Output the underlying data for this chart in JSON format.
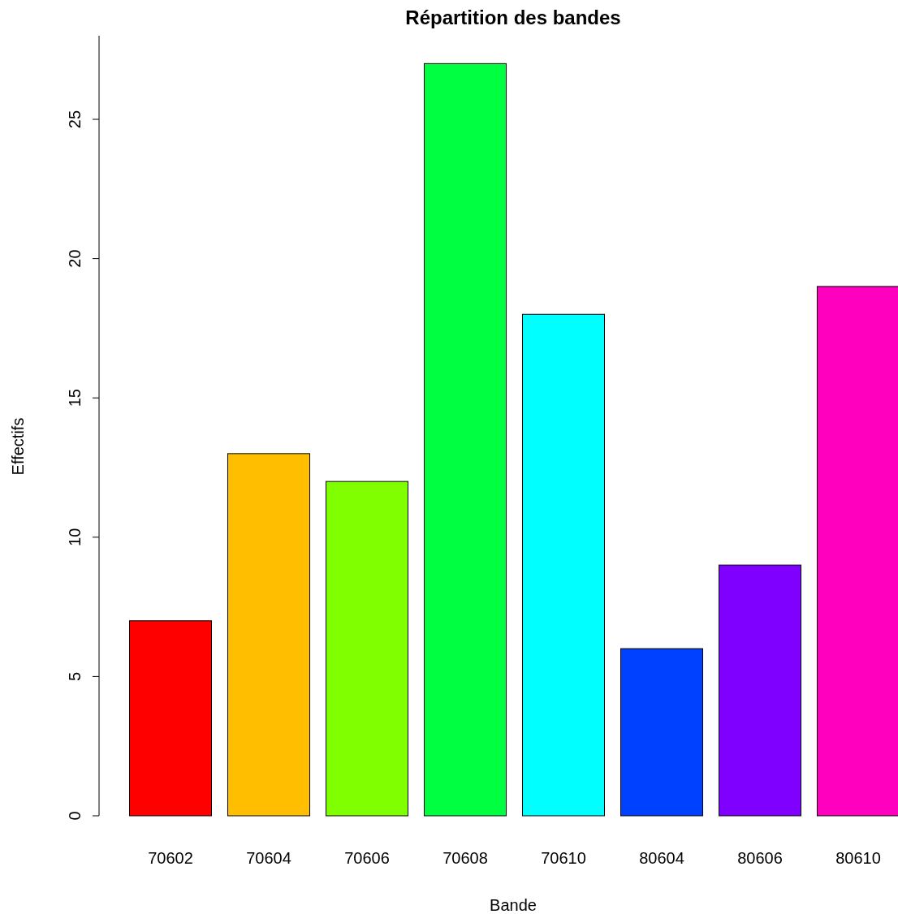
{
  "chart_data": {
    "type": "bar",
    "title": "Répartition des bandes",
    "xlabel": "Bande",
    "ylabel": "Effectifs",
    "categories": [
      "70602",
      "70604",
      "70606",
      "70608",
      "70610",
      "80604",
      "80606",
      "80610"
    ],
    "values": [
      7,
      13,
      12,
      27,
      18,
      6,
      9,
      19
    ],
    "colors": [
      "#ff0000",
      "#ffbf00",
      "#80ff00",
      "#00ff40",
      "#00ffff",
      "#0040ff",
      "#8000ff",
      "#ff00bf"
    ],
    "ylim": [
      0,
      28
    ],
    "yticks": [
      0,
      5,
      10,
      15,
      20,
      25
    ],
    "grid": false
  }
}
